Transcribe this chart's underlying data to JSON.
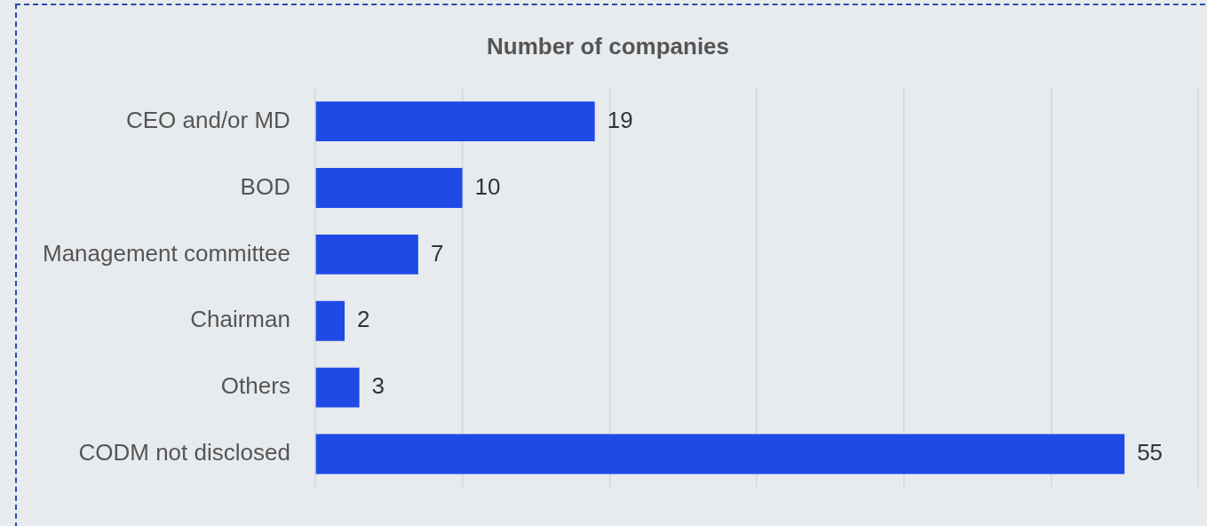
{
  "chart_data": {
    "type": "bar",
    "orientation": "horizontal",
    "title": "Number of companies",
    "categories": [
      "CEO and/or MD",
      "BOD",
      "Management committee",
      "Chairman",
      "Others",
      "CODM not disclosed"
    ],
    "values": [
      19,
      10,
      7,
      2,
      3,
      55
    ],
    "color": "#1f4ae6",
    "xlim": [
      0,
      60
    ],
    "xticks": [
      {
        "value": 0,
        "label": null
      },
      {
        "value": 10,
        "label": null
      },
      {
        "value": 20,
        "label": null
      },
      {
        "value": 30,
        "label": null
      },
      {
        "value": 40,
        "label": null
      },
      {
        "value": 50,
        "label": null
      },
      {
        "value": 60,
        "label": null
      }
    ],
    "tick_labels": "y",
    "grid": "x",
    "legend": false,
    "data_labels": true
  }
}
